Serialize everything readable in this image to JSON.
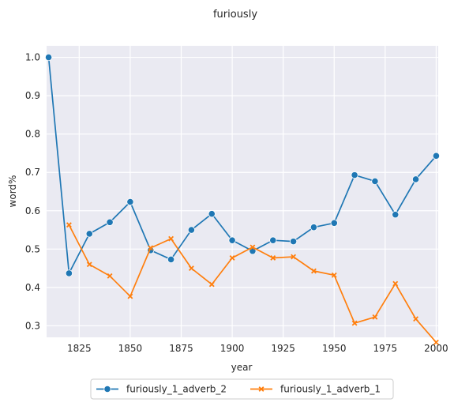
{
  "chart_data": {
    "type": "line",
    "title": "furiously",
    "xlabel": "year",
    "ylabel": "word%",
    "xlim": [
      1809,
      2001
    ],
    "ylim": [
      0.27,
      1.03
    ],
    "xticks": [
      1825,
      1850,
      1875,
      1900,
      1925,
      1950,
      1975,
      2000
    ],
    "xtick_labels": [
      "1825",
      "1850",
      "1875",
      "1900",
      "1925",
      "1950",
      "1975",
      "2000"
    ],
    "yticks": [
      0.3,
      0.4,
      0.5,
      0.6,
      0.7,
      0.8,
      0.9,
      1.0
    ],
    "ytick_labels": [
      "0.3",
      "0.4",
      "0.5",
      "0.6",
      "0.7",
      "0.8",
      "0.9",
      "1.0"
    ],
    "grid": true,
    "legend_position": "bottom-center",
    "series": [
      {
        "name": "furiously_1_adverb_2",
        "color": "#1f77b4",
        "marker": "circle",
        "x": [
          1810,
          1820,
          1830,
          1840,
          1850,
          1860,
          1870,
          1880,
          1890,
          1900,
          1910,
          1920,
          1930,
          1940,
          1950,
          1960,
          1970,
          1980,
          1990,
          2000
        ],
        "y": [
          1.0,
          0.437,
          0.54,
          0.57,
          0.623,
          0.497,
          0.473,
          0.55,
          0.592,
          0.523,
          0.495,
          0.523,
          0.52,
          0.557,
          0.568,
          0.693,
          0.677,
          0.59,
          0.682,
          0.743
        ]
      },
      {
        "name": "furiously_1_adverb_1",
        "color": "#ff7f0e",
        "marker": "x",
        "x": [
          1820,
          1830,
          1840,
          1850,
          1860,
          1870,
          1880,
          1890,
          1900,
          1910,
          1920,
          1930,
          1940,
          1950,
          1960,
          1970,
          1980,
          1990,
          2000
        ],
        "y": [
          0.563,
          0.46,
          0.43,
          0.377,
          0.503,
          0.527,
          0.45,
          0.408,
          0.477,
          0.505,
          0.477,
          0.48,
          0.443,
          0.432,
          0.307,
          0.323,
          0.41,
          0.318,
          0.257
        ]
      }
    ]
  }
}
